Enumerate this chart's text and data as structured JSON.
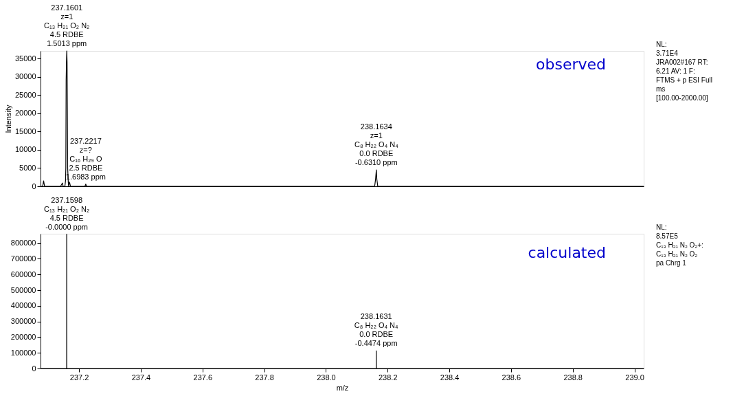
{
  "chart_data": [
    {
      "type": "line",
      "title": "observed",
      "ylabel": "Intensity",
      "xlim": [
        237.075,
        239.03
      ],
      "ylim": [
        0,
        37100
      ],
      "yticks": [
        0,
        5000,
        10000,
        15000,
        20000,
        25000,
        30000,
        35000
      ],
      "tick_labels": "y",
      "grid": false,
      "line_style": "solid",
      "series": [
        {
          "color": "#000000",
          "x": [
            237.075,
            237.082,
            237.084,
            237.085,
            237.086,
            237.088,
            237.14,
            237.144,
            237.146,
            237.148,
            237.154,
            237.156,
            237.157,
            237.158,
            237.159,
            237.1601,
            237.161,
            237.162,
            237.163,
            237.165,
            237.166,
            237.168,
            237.17,
            237.172,
            237.219,
            237.2217,
            237.224,
            238.158,
            238.161,
            238.1634,
            238.165,
            238.168,
            239.03
          ],
          "values": [
            0,
            0,
            1000,
            1500,
            1000,
            0,
            0,
            600,
            900,
            0,
            0,
            1500,
            5000,
            29000,
            34000,
            37100,
            34000,
            21000,
            5000,
            1000,
            0,
            1200,
            800,
            0,
            0,
            600,
            0,
            0,
            2000,
            4500,
            2000,
            0,
            0
          ]
        }
      ],
      "annotations": [
        {
          "text": "237.1601\nz=1\nC₁₃ H₂₁ O₂ N₂\n4.5 RDBE\n1.5013 ppm",
          "x": 237.1601,
          "y": 37100
        },
        {
          "text": "237.2217\nz=?\nC₁₆ H₂₉ O\n2.5 RDBE\n1.6983 ppm",
          "x": 237.2217,
          "y": 600
        },
        {
          "text": "238.1634\nz=1\nC₈ H₂₂ O₄ N₄\n0.0 RDBE\n-0.6310 ppm",
          "x": 238.1634,
          "y": 4500
        },
        "NL:\n3.71E4\nJRA002#167  RT:\n6.21  AV: 1 F:\nFTMS + p ESI Full\nms\n[100.00-2000.00]"
      ]
    },
    {
      "type": "line",
      "title": "calculated",
      "xlabel": "m/z",
      "xlim": [
        237.075,
        239.03
      ],
      "ylim": [
        0,
        860000
      ],
      "xticks": [
        237.2,
        237.4,
        237.6,
        237.8,
        {
          "value": 238,
          "label": "238.0"
        },
        238.2,
        238.4,
        238.6,
        238.8,
        {
          "value": 239,
          "label": "239.0"
        }
      ],
      "yticks": [
        0,
        100000,
        200000,
        300000,
        400000,
        500000,
        600000,
        700000,
        800000
      ],
      "grid": false,
      "line_style": "solid",
      "series": [
        {
          "color": "#000000",
          "x": [
            237.075,
            237.1597,
            237.1598,
            237.1599,
            238.163,
            238.1631,
            238.1632,
            239.03
          ],
          "values": [
            0,
            0,
            857000,
            0,
            0,
            113000,
            0,
            0
          ]
        }
      ],
      "annotations": [
        {
          "text": "237.1598\nC₁₃ H₂₁ O₂ N₂\n4.5 RDBE\n-0.0000 ppm",
          "x": 237.1598,
          "y": 857000
        },
        {
          "text": "238.1631\nC₈ H₂₂ O₄ N₄\n0.0 RDBE\n-0.4474 ppm",
          "x": 238.1631,
          "y": 113000
        },
        "NL:\n8.57E5\nC₁₃ H₂₁ N₂ O₂+:\nC₁₃ H₂₁ N₂ O₂\npa Chrg 1"
      ]
    }
  ]
}
